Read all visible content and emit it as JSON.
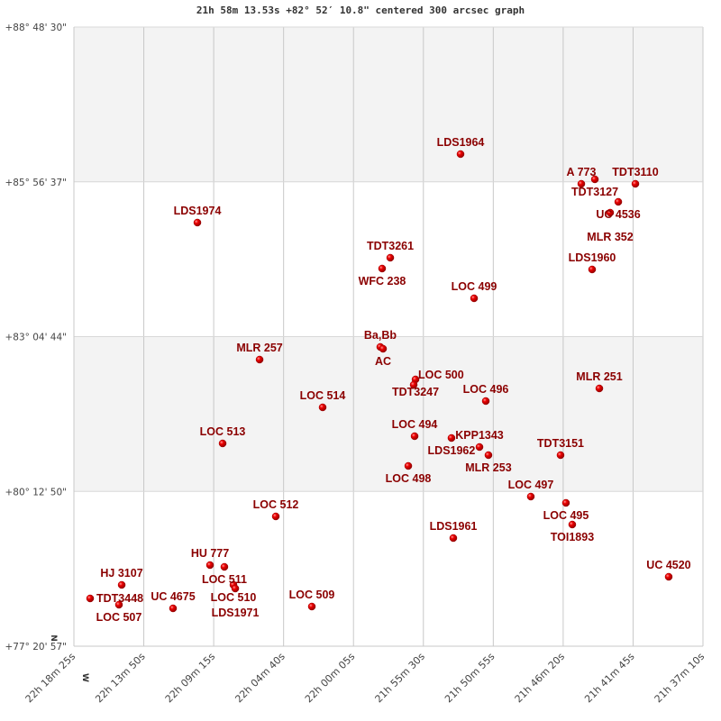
{
  "chart_data": {
    "type": "scatter",
    "title": "21h 58m 13.53s +82° 52′ 10.8\" centered 300 arcsec graph",
    "x_axis": {
      "quantity": "right ascension (hours)",
      "range_hours": [
        22.306944,
        21.619444
      ],
      "reversed": true,
      "tick_labels": [
        "22h 18m 25s",
        "22h 13m 50s",
        "22h 09m 15s",
        "22h 04m 40s",
        "22h 00m 05s",
        "21h 55m 30s",
        "21h 50m 55s",
        "21h 46m 20s",
        "21h 41m 45s",
        "21h 37m 10s"
      ]
    },
    "y_axis": {
      "quantity": "declination (degrees)",
      "range_deg": [
        77.349167,
        88.808333
      ],
      "tick_labels": [
        "+77° 20' 57\"",
        "+80° 12' 50\"",
        "+83° 04' 44\"",
        "+85° 56' 37\"",
        "+88° 48' 30\""
      ]
    },
    "compass": {
      "north": "N",
      "west": "W"
    },
    "grid": true,
    "band_colors": [
      "#f3f3f3",
      "#ffffff"
    ],
    "marker_color": "#dd0000",
    "label_color": "#8b0000",
    "points": [
      {
        "name": "LDS1964",
        "ra": 21.8844,
        "dec": 86.457
      },
      {
        "name": "A  773",
        "ra": 21.7524,
        "dec": 85.9065
      },
      {
        "name": "TDT3127",
        "ra": 21.7376,
        "dec": 85.99
      },
      {
        "name": "TDT3110",
        "ra": 21.6933,
        "dec": 85.9065
      },
      {
        "name": "UC 4536",
        "ra": 21.712,
        "dec": 85.5729
      },
      {
        "name": "MLR 352",
        "ra": 21.7209,
        "dec": 85.3728
      },
      {
        "name": "LDS1974",
        "ra": 22.172,
        "dec": 85.1893
      },
      {
        "name": "TDT3261",
        "ra": 21.9612,
        "dec": 84.5387
      },
      {
        "name": "WFC 238",
        "ra": 21.9701,
        "dec": 84.3385
      },
      {
        "name": "LDS1960",
        "ra": 21.7406,
        "dec": 84.3219
      },
      {
        "name": "LOC 499",
        "ra": 21.8696,
        "dec": 83.7881
      },
      {
        "name": "Ba,Bb",
        "ra": 21.9721,
        "dec": 82.8873
      },
      {
        "name": "AC",
        "ra": 21.9691,
        "dec": 82.8539
      },
      {
        "name": "MLR 257",
        "ra": 22.104,
        "dec": 82.6538
      },
      {
        "name": "TDT3247",
        "ra": 21.9336,
        "dec": 82.2868
      },
      {
        "name": "LOC 500",
        "ra": 21.9356,
        "dec": 82.1867
      },
      {
        "name": "LOC 496",
        "ra": 21.8568,
        "dec": 81.8864
      },
      {
        "name": "MLR 251",
        "ra": 21.7327,
        "dec": 82.12
      },
      {
        "name": "LOC 514",
        "ra": 22.0351,
        "dec": 81.7697
      },
      {
        "name": "LOC 513",
        "ra": 22.1444,
        "dec": 81.1024
      },
      {
        "name": "LOC 494",
        "ra": 21.9346,
        "dec": 81.2359
      },
      {
        "name": "LDS1962",
        "ra": 21.8943,
        "dec": 81.2025
      },
      {
        "name": "KPP1343",
        "ra": 21.8637,
        "dec": 81.0357
      },
      {
        "name": "MLR 253",
        "ra": 21.8539,
        "dec": 80.8856
      },
      {
        "name": "LOC 498",
        "ra": 21.9415,
        "dec": 80.6854
      },
      {
        "name": "TDT3151",
        "ra": 21.7751,
        "dec": 80.8856
      },
      {
        "name": "LOC 497",
        "ra": 21.8076,
        "dec": 80.1182
      },
      {
        "name": "LOC 495",
        "ra": 21.7692,
        "dec": 80.0015
      },
      {
        "name": "TOI1893",
        "ra": 21.7623,
        "dec": 79.6011
      },
      {
        "name": "LOC 512",
        "ra": 22.0863,
        "dec": 79.7513
      },
      {
        "name": "LDS1961",
        "ra": 21.8923,
        "dec": 79.3509
      },
      {
        "name": "UC 4520",
        "ra": 21.6569,
        "dec": 78.6336
      },
      {
        "name": "HU  777",
        "ra": 22.1582,
        "dec": 78.8505
      },
      {
        "name": "LOC 511",
        "ra": 22.1425,
        "dec": 78.8171
      },
      {
        "name": "LOC 510",
        "ra": 22.1326,
        "dec": 78.4835
      },
      {
        "name": "LDS1971",
        "ra": 22.1306,
        "dec": 78.4168
      },
      {
        "name": "HJ 3107",
        "ra": 22.2547,
        "dec": 78.4835
      },
      {
        "name": "TDT3448",
        "ra": 22.2892,
        "dec": 78.2333
      },
      {
        "name": "LOC 507",
        "ra": 22.2577,
        "dec": 78.1165
      },
      {
        "name": "UC 4675",
        "ra": 22.1986,
        "dec": 78.0498
      },
      {
        "name": "LOC 509",
        "ra": 22.0469,
        "dec": 78.0832
      }
    ]
  }
}
